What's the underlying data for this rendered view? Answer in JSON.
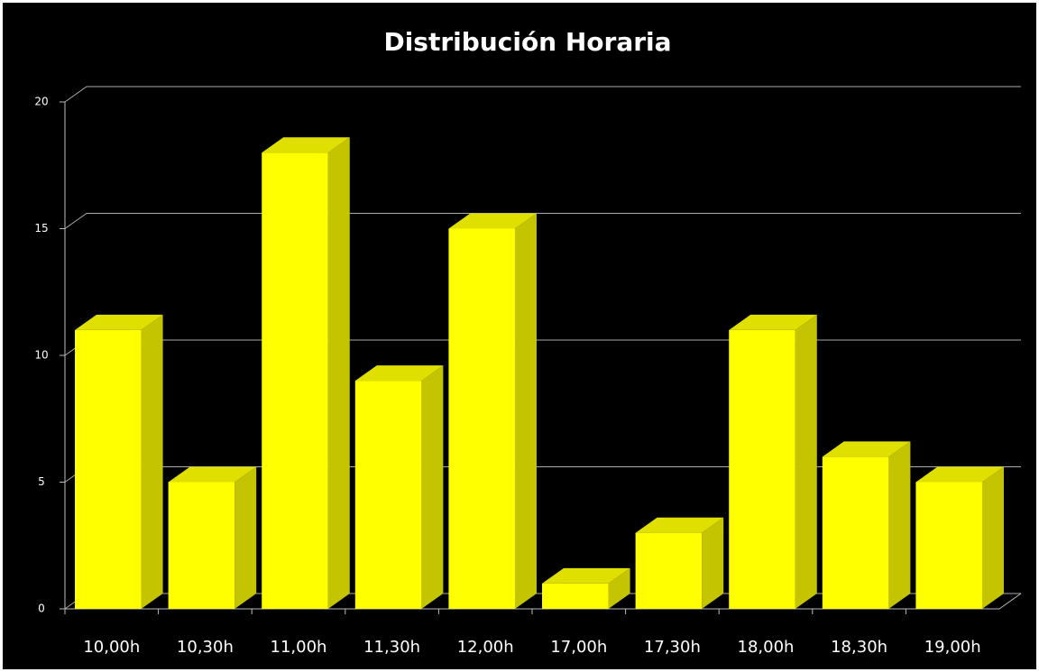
{
  "chart_data": {
    "type": "bar",
    "title": "Distribución Horaria",
    "categories": [
      "10,00h",
      "10,30h",
      "11,00h",
      "11,30h",
      "12,00h",
      "17,00h",
      "17,30h",
      "18,00h",
      "18,30h",
      "19,00h"
    ],
    "values": [
      11,
      5,
      18,
      9,
      15,
      1,
      3,
      11,
      6,
      5
    ],
    "color": "#ffff00",
    "ylim": [
      0,
      20
    ],
    "yticks": [
      0,
      5,
      10,
      15,
      20
    ],
    "grid": true
  }
}
